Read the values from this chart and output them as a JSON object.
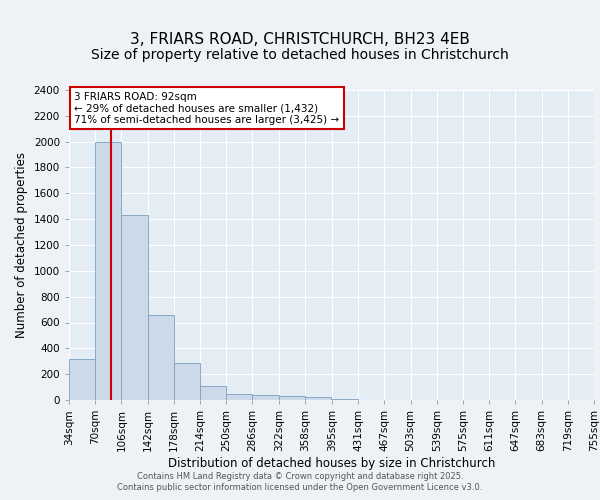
{
  "title_line1": "3, FRIARS ROAD, CHRISTCHURCH, BH23 4EB",
  "title_line2": "Size of property relative to detached houses in Christchurch",
  "xlabel": "Distribution of detached houses by size in Christchurch",
  "ylabel": "Number of detached properties",
  "bin_labels": [
    "34sqm",
    "70sqm",
    "106sqm",
    "142sqm",
    "178sqm",
    "214sqm",
    "250sqm",
    "286sqm",
    "322sqm",
    "358sqm",
    "395sqm",
    "431sqm",
    "467sqm",
    "503sqm",
    "539sqm",
    "575sqm",
    "611sqm",
    "647sqm",
    "683sqm",
    "719sqm",
    "755sqm"
  ],
  "bin_edges": [
    34,
    70,
    106,
    142,
    178,
    214,
    250,
    286,
    322,
    358,
    395,
    431,
    467,
    503,
    539,
    575,
    611,
    647,
    683,
    719,
    755
  ],
  "bar_heights": [
    320,
    2000,
    1432,
    660,
    285,
    105,
    45,
    35,
    30,
    20,
    10,
    0,
    0,
    0,
    0,
    0,
    0,
    0,
    0,
    0,
    0
  ],
  "bar_color": "#ccd9e8",
  "bar_edge_color": "#7aa0c0",
  "red_line_x": 92,
  "annotation_text": "3 FRIARS ROAD: 92sqm\n← 29% of detached houses are smaller (1,432)\n71% of semi-detached houses are larger (3,425) →",
  "annotation_box_color": "#ffffff",
  "annotation_box_edge": "#cc0000",
  "red_line_color": "#cc0000",
  "ylim": [
    0,
    2400
  ],
  "yticks": [
    0,
    200,
    400,
    600,
    800,
    1000,
    1200,
    1400,
    1600,
    1800,
    2000,
    2200,
    2400
  ],
  "footer_line1": "Contains HM Land Registry data © Crown copyright and database right 2025.",
  "footer_line2": "Contains public sector information licensed under the Open Government Licence v3.0.",
  "bg_color": "#eef2f6",
  "plot_bg_color": "#e4ecf4",
  "grid_color": "#ffffff",
  "title_fontsize": 11,
  "subtitle_fontsize": 10,
  "axis_label_fontsize": 8.5,
  "tick_fontsize": 7.5,
  "footer_fontsize": 6,
  "annot_fontsize": 7.5
}
